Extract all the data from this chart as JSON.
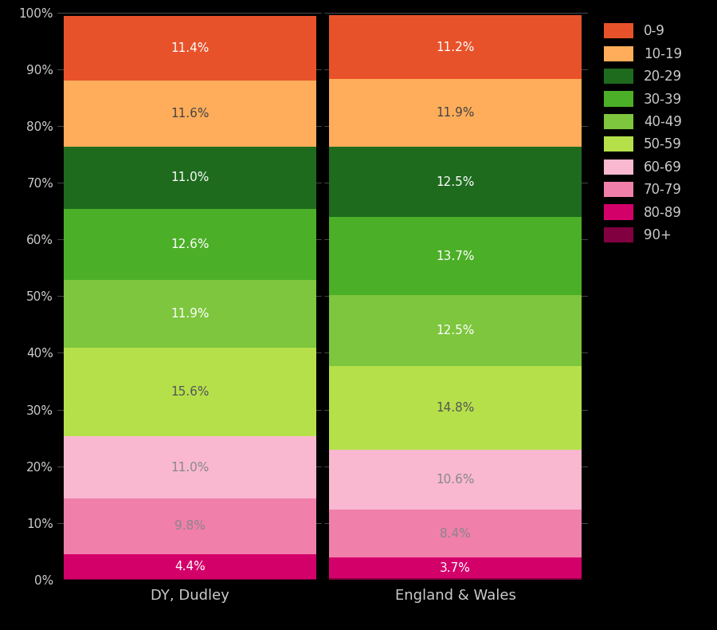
{
  "categories": [
    "DY, Dudley",
    "England & Wales"
  ],
  "colors": {
    "0-9": "#E8522A",
    "10-19": "#FFAD5A",
    "20-29": "#1E6B1E",
    "30-39": "#4CAF28",
    "40-49": "#7DC63E",
    "50-59": "#B5E04A",
    "60-69": "#F9B8D0",
    "70-79": "#F07FAA",
    "80-89": "#D4006A",
    "90+": "#800040"
  },
  "dudley_data": {
    "90+": 0.1,
    "80-89": 4.4,
    "70-79": 9.8,
    "60-69": 11.0,
    "50-59": 15.6,
    "40-49": 11.9,
    "30-39": 12.6,
    "20-29": 11.0,
    "10-19": 11.6,
    "0-9": 11.4
  },
  "england_data": {
    "90+": 0.2,
    "80-89": 3.7,
    "70-79": 8.4,
    "60-69": 10.6,
    "50-59": 14.8,
    "40-49": 12.5,
    "30-39": 13.7,
    "20-29": 12.5,
    "10-19": 11.9,
    "0-9": 11.2
  },
  "background_color": "#000000",
  "text_color": "#cccccc",
  "figsize": [
    9.0,
    7.9
  ],
  "dpi": 100,
  "legend_order": [
    "0-9",
    "10-19",
    "20-29",
    "30-39",
    "40-49",
    "50-59",
    "60-69",
    "70-79",
    "80-89",
    "90+"
  ],
  "age_groups_bottom_to_top": [
    "90+",
    "80-89",
    "70-79",
    "60-69",
    "50-59",
    "40-49",
    "30-39",
    "20-29",
    "10-19",
    "0-9"
  ],
  "label_colors": {
    "0-9": "#ffffff",
    "10-19": "#444444",
    "20-29": "#ffffff",
    "30-39": "#ffffff",
    "40-49": "#ffffff",
    "50-59": "#555555",
    "60-69": "#888888",
    "70-79": "#888888",
    "80-89": "#ffffff",
    "90+": "#ffffff"
  }
}
